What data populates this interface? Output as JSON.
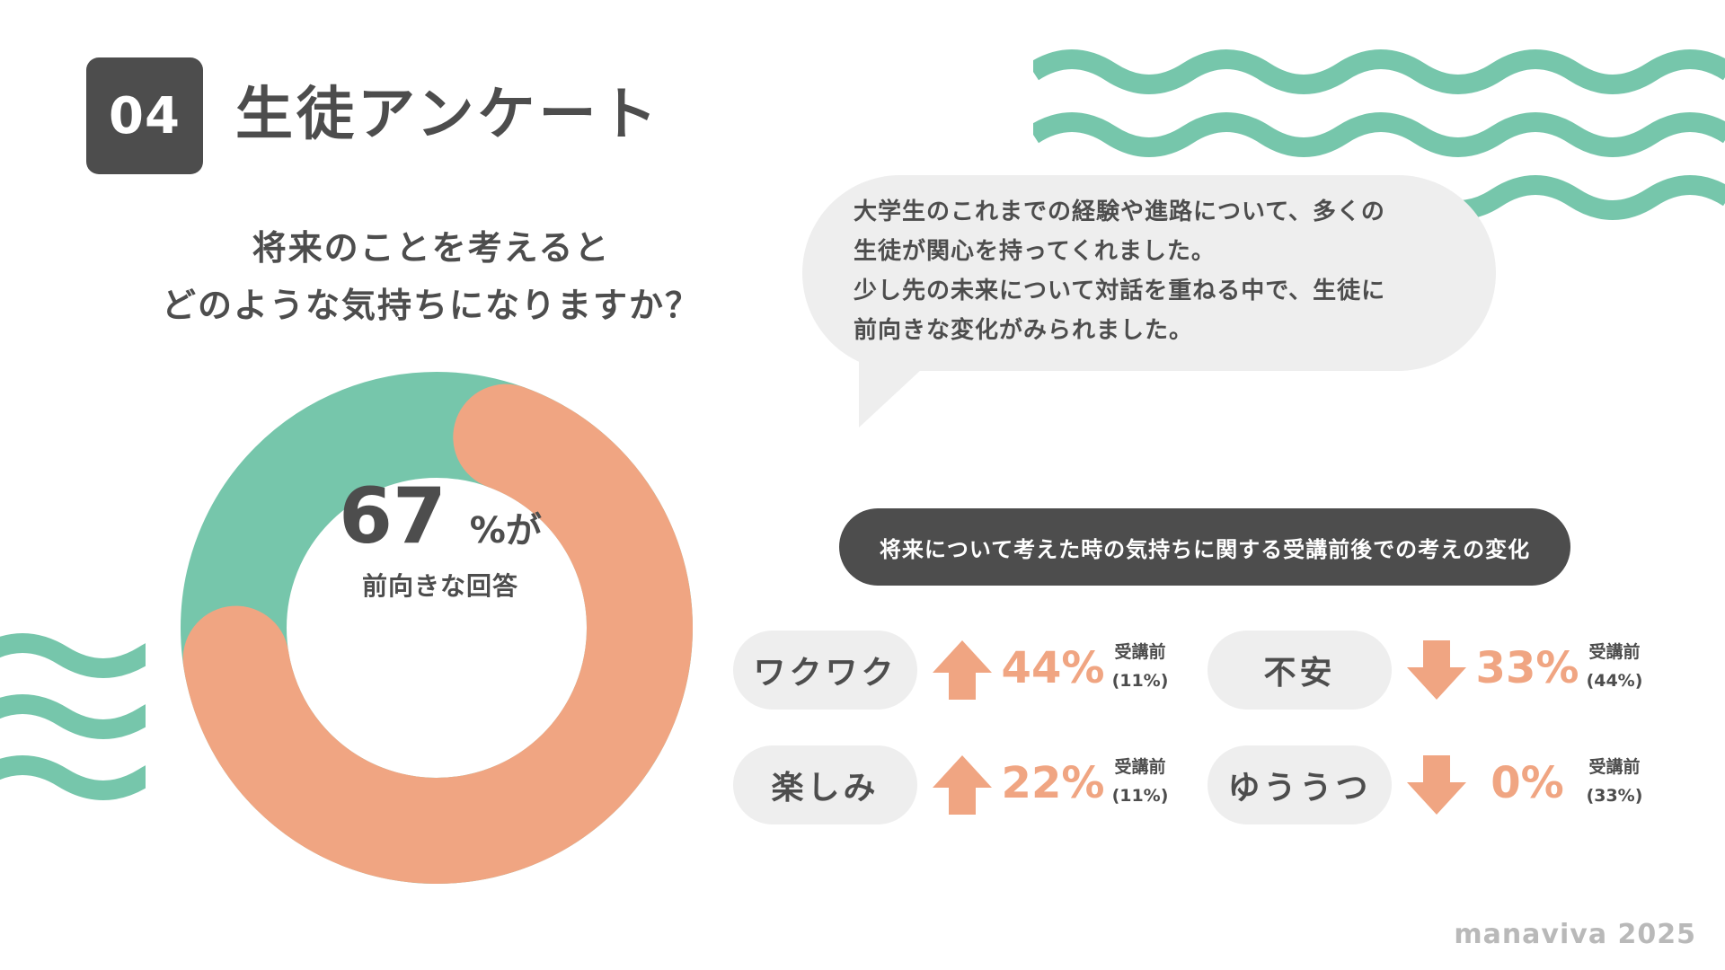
{
  "header": {
    "number": "04",
    "title": "生徒アンケート"
  },
  "question": {
    "line1": "将来のことを考えると",
    "line2": "どのような気持ちになりますか？"
  },
  "bubble": {
    "lines": [
      "大学生のこれまでの経験や進路について、多くの",
      "生徒が関心を持ってくれました。",
      "少し先の未来について対話を重ねる中で、生徒に",
      "前向きな変化がみられました。"
    ]
  },
  "donut": {
    "value": "67",
    "suffix": "%が",
    "label": "前向きな回答"
  },
  "banner": "将来について考えた時の気持ちに関する受講前後での考えの変化",
  "chart_data": [
    {
      "type": "pie",
      "categories": [
        "前向きな回答",
        ""
      ],
      "values": [
        67,
        33
      ],
      "colors": [
        "#f0a582",
        "#76c6ab"
      ]
    },
    {
      "type": "table",
      "before_label": "受講前",
      "rows": [
        {
          "feeling": "ワクワク",
          "after": "44%",
          "before": "(11%)",
          "direction": "up"
        },
        {
          "feeling": "楽しみ",
          "after": "22%",
          "before": "(11%)",
          "direction": "up"
        },
        {
          "feeling": "不安",
          "after": "33%",
          "before": "(44%)",
          "direction": "down"
        },
        {
          "feeling": "ゆううつ",
          "after": "0%",
          "before": "(33%)",
          "direction": "down"
        }
      ]
    }
  ],
  "colors": {
    "dark": "#4d4d4d",
    "green": "#76c6ab",
    "salmon": "#f0a582",
    "light": "#eeeeee"
  },
  "footer": "manaviva 2025"
}
